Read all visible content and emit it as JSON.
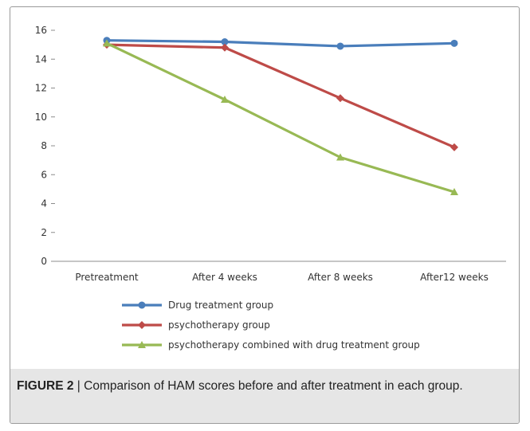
{
  "chart_data": {
    "type": "line",
    "categories": [
      "Pretreatment",
      "After 4 weeks",
      "After 8 weeks",
      "After12 weeks"
    ],
    "ylim": [
      0,
      16
    ],
    "yticks": [
      "0",
      "2",
      "4",
      "6",
      "8",
      "10",
      "12",
      "14",
      "16"
    ],
    "grid": false,
    "legend_position": "bottom-left",
    "series": [
      {
        "name": "Drug treatment group",
        "values": [
          15.3,
          15.2,
          14.9,
          15.1
        ],
        "color": "#4a7ebb",
        "marker": "circle"
      },
      {
        "name": "psychotherapy group",
        "values": [
          15.0,
          14.8,
          11.3,
          7.9
        ],
        "color": "#be4b48",
        "marker": "diamond"
      },
      {
        "name": "psychotherapy combined with drug treatment group",
        "values": [
          15.1,
          11.2,
          7.2,
          4.8
        ],
        "color": "#98b954",
        "marker": "triangle"
      }
    ]
  },
  "caption": {
    "label": "FIGURE 2",
    "text": " | Comparison of HAM scores before and after treatment in each group."
  }
}
